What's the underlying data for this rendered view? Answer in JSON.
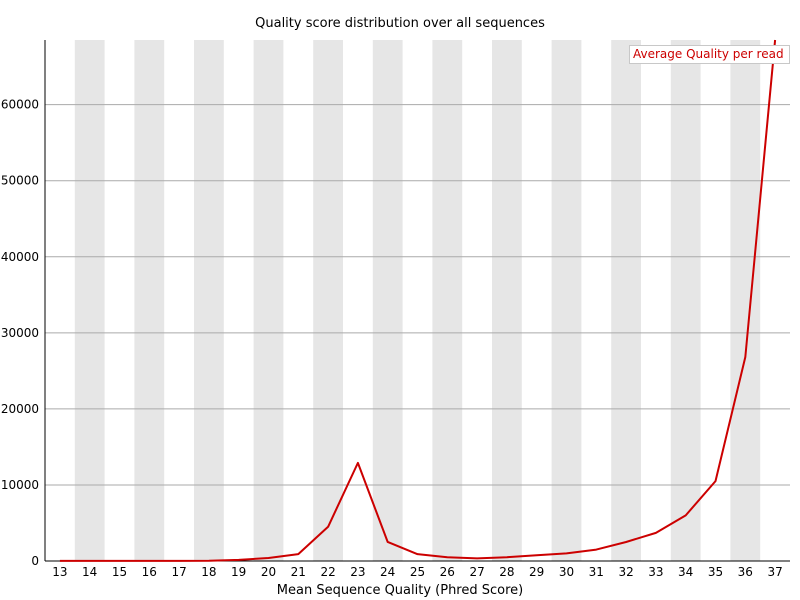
{
  "chart_data": {
    "type": "line",
    "title": "Quality score distribution over all sequences",
    "xlabel": "Mean Sequence Quality (Phred Score)",
    "ylabel": "",
    "categories": [
      "13",
      "14",
      "15",
      "16",
      "17",
      "18",
      "19",
      "20",
      "21",
      "22",
      "23",
      "24",
      "25",
      "26",
      "27",
      "28",
      "29",
      "30",
      "31",
      "32",
      "33",
      "34",
      "35",
      "36",
      "37"
    ],
    "series": [
      {
        "name": "Average Quality per read",
        "color": "#cc0000",
        "values": [
          10,
          20,
          20,
          20,
          20,
          30,
          150,
          400,
          900,
          4500,
          12900,
          2500,
          900,
          500,
          350,
          500,
          750,
          1000,
          1500,
          2500,
          3700,
          6000,
          10500,
          26800,
          68500
        ]
      }
    ],
    "ylim": [
      0,
      68500
    ],
    "yticks": [
      "0",
      "10000",
      "20000",
      "30000",
      "40000",
      "50000",
      "60000"
    ],
    "ytick_values": [
      0,
      10000,
      20000,
      30000,
      40000,
      50000,
      60000
    ],
    "grid": true,
    "alternating_column_shading": true,
    "shade_color": "#e6e6e6",
    "gridline_color": "#aaaaaa",
    "legend_position": "top-right"
  }
}
